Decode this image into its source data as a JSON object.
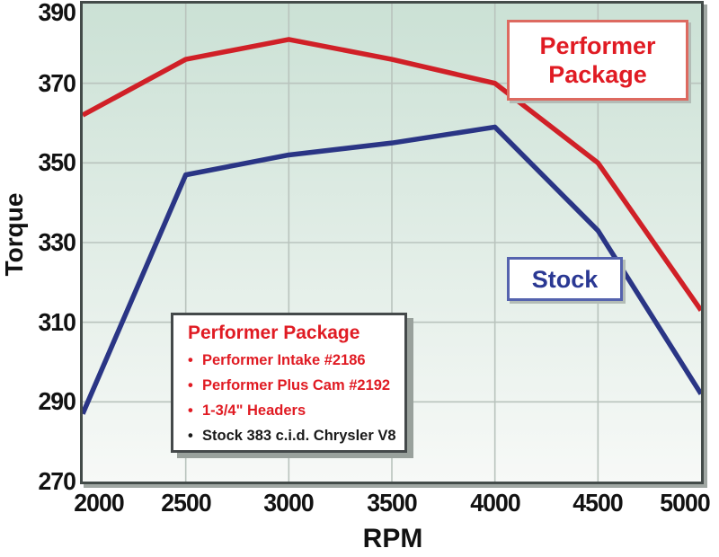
{
  "chart_data": {
    "type": "line",
    "title": "",
    "xlabel": "RPM",
    "ylabel": "Torque",
    "xlim": [
      2000,
      5000
    ],
    "ylim": [
      270,
      390
    ],
    "xticks": [
      2000,
      2500,
      3000,
      3500,
      4000,
      4500,
      5000
    ],
    "yticks": [
      270,
      290,
      310,
      330,
      350,
      370,
      390
    ],
    "grid": true,
    "legend_position": "annotated-boxes-on-plot",
    "x": [
      2000,
      2500,
      3000,
      3500,
      4000,
      4500,
      5000
    ],
    "series": [
      {
        "name": "Performer Package",
        "color": "#d02027",
        "values": [
          362,
          376,
          381,
          376,
          370,
          350,
          313
        ]
      },
      {
        "name": "Stock",
        "color": "#2a3585",
        "values": [
          287,
          347,
          352,
          355,
          359,
          333,
          292
        ]
      }
    ],
    "plot_bg_top": "#cbe1d5",
    "plot_bg_bottom": "#f7f9f7",
    "grid_color": "#b9c3bd",
    "border_color": "#434b49"
  },
  "axis_titles": {
    "y": "Torque",
    "x": "RPM"
  },
  "annotations": {
    "performer_label": {
      "line1": "Performer",
      "line2": "Package"
    },
    "stock_label": {
      "text": "Stock"
    },
    "callout": {
      "title": "Performer Package",
      "items": [
        {
          "text": "Performer Intake #2186",
          "color": "#e01b23"
        },
        {
          "text": "Performer Plus Cam #2192",
          "color": "#e01b23"
        },
        {
          "text": "1-3/4\" Headers",
          "color": "#e01b23"
        },
        {
          "text": "Stock 383 c.i.d. Chrysler V8",
          "color": "#1a1a1a"
        }
      ]
    }
  }
}
